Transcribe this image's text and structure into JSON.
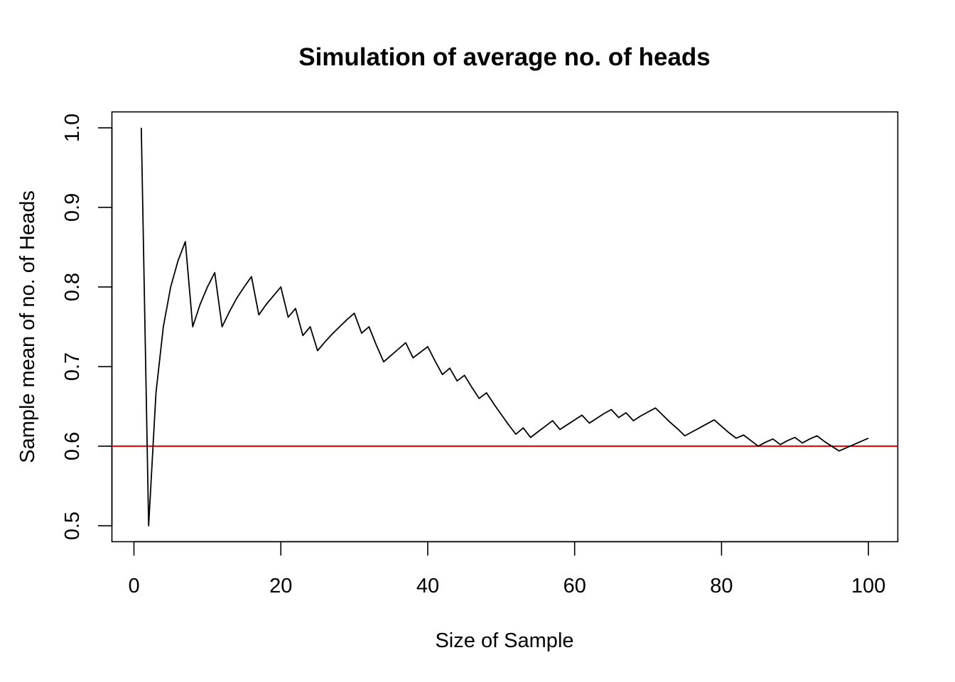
{
  "chart_data": {
    "type": "line",
    "title": "Simulation of average no. of heads",
    "xlabel": "Size of Sample",
    "ylabel": "Sample mean of no. of Heads",
    "xlim": [
      -3,
      104
    ],
    "ylim": [
      0.48,
      1.02
    ],
    "x_ticks": [
      0,
      20,
      40,
      60,
      80,
      100
    ],
    "x_tick_labels": [
      "0",
      "20",
      "40",
      "60",
      "80",
      "100"
    ],
    "y_ticks": [
      0.5,
      0.6,
      0.7,
      0.8,
      0.9,
      1.0
    ],
    "y_tick_labels": [
      "0.5",
      "0.6",
      "0.7",
      "0.8",
      "0.9",
      "1.0"
    ],
    "grid": false,
    "series": [
      {
        "color": "#000000",
        "x": [
          1,
          2,
          3,
          4,
          5,
          6,
          7,
          8,
          9,
          10,
          11,
          12,
          13,
          14,
          15,
          16,
          17,
          18,
          19,
          20,
          21,
          22,
          23,
          24,
          25,
          26,
          27,
          28,
          29,
          30,
          31,
          32,
          33,
          34,
          35,
          36,
          37,
          38,
          39,
          40,
          41,
          42,
          43,
          44,
          45,
          46,
          47,
          48,
          49,
          50,
          51,
          52,
          53,
          54,
          55,
          56,
          57,
          58,
          59,
          60,
          61,
          62,
          63,
          64,
          65,
          66,
          67,
          68,
          69,
          70,
          71,
          72,
          73,
          74,
          75,
          76,
          77,
          78,
          79,
          80,
          81,
          82,
          83,
          84,
          85,
          86,
          87,
          88,
          89,
          90,
          91,
          92,
          93,
          94,
          95,
          96,
          97,
          98,
          99,
          100
        ],
        "values": [
          1.0,
          0.5,
          0.667,
          0.75,
          0.8,
          0.833,
          0.857,
          0.75,
          0.778,
          0.8,
          0.818,
          0.75,
          0.769,
          0.786,
          0.8,
          0.813,
          0.765,
          0.778,
          0.789,
          0.8,
          0.762,
          0.773,
          0.739,
          0.75,
          0.72,
          0.731,
          0.741,
          0.75,
          0.759,
          0.767,
          0.742,
          0.75,
          0.727,
          0.706,
          0.714,
          0.722,
          0.73,
          0.711,
          0.718,
          0.725,
          0.707,
          0.69,
          0.698,
          0.682,
          0.689,
          0.674,
          0.66,
          0.667,
          0.653,
          0.64,
          0.627,
          0.615,
          0.623,
          0.611,
          0.618,
          0.625,
          0.632,
          0.621,
          0.627,
          0.633,
          0.639,
          0.629,
          0.635,
          0.641,
          0.646,
          0.636,
          0.642,
          0.632,
          0.638,
          0.643,
          0.648,
          0.639,
          0.63,
          0.622,
          0.613,
          0.618,
          0.623,
          0.628,
          0.633,
          0.625,
          0.617,
          0.61,
          0.614,
          0.607,
          0.6,
          0.605,
          0.609,
          0.602,
          0.607,
          0.611,
          0.604,
          0.609,
          0.613,
          0.606,
          0.6,
          0.594,
          0.598,
          0.602,
          0.606,
          0.61
        ]
      }
    ],
    "reference_line": {
      "y": 0.6,
      "color": "#ff0000"
    }
  }
}
